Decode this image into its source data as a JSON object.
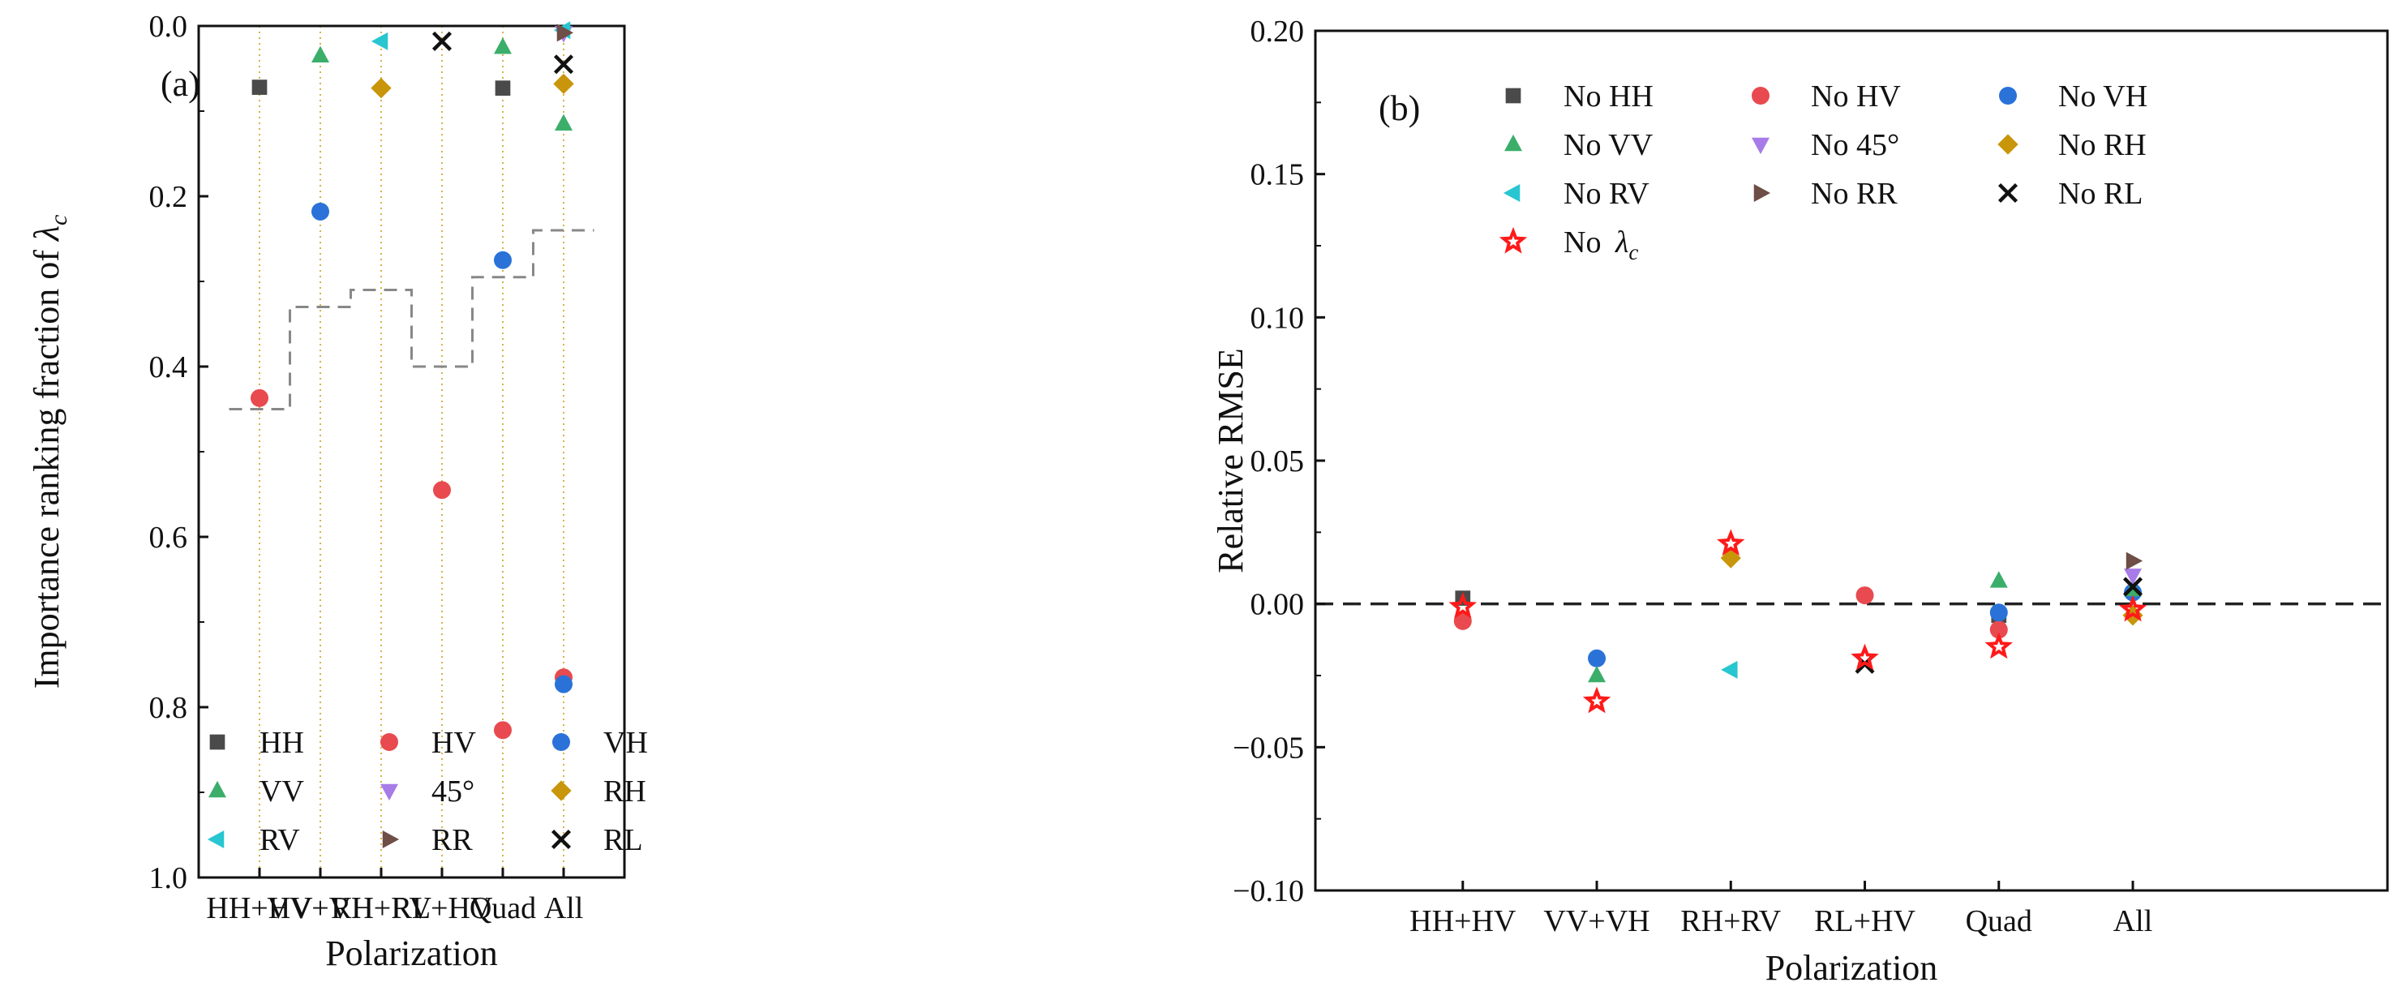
{
  "colors": {
    "HH": "#4a4a4a",
    "HV": "#e84a4f",
    "VH": "#2a72d8",
    "VV": "#3bae6a",
    "45": "#a77be8",
    "RH": "#c9950a",
    "RV": "#27c6d1",
    "RR": "#6e4e46",
    "RL": "#111111",
    "LC": "#ff1a1a",
    "guide": "#888888",
    "dashed_zero": "#222222"
  },
  "chart_data": [
    {
      "type": "scatter",
      "panel_label": "(a)",
      "xlabel": "Polarization",
      "ylabel_prefix": "Importance ranking fraction of ",
      "ylabel_symbol": "λ",
      "ylabel_sub": "c",
      "categories": [
        "HH+HV",
        "VV+VH",
        "RH+RV",
        "RL+HV",
        "Quad",
        "All"
      ],
      "ylim": [
        1.0,
        0.0
      ],
      "yticks": [
        "0.0",
        "0.2",
        "0.4",
        "0.6",
        "0.8",
        "1.0"
      ],
      "ytick_values": [
        0.0,
        0.2,
        0.4,
        0.6,
        0.8,
        1.0
      ],
      "guide_levels": [
        0.45,
        0.33,
        0.31,
        0.4,
        0.295,
        0.24
      ],
      "legend_position": "bottom-left",
      "legend": [
        {
          "key": "HH",
          "label": "HH",
          "marker": "square"
        },
        {
          "key": "HV",
          "label": "HV",
          "marker": "circle"
        },
        {
          "key": "VH",
          "label": "VH",
          "marker": "circle"
        },
        {
          "key": "VV",
          "label": "VV",
          "marker": "triangle-up"
        },
        {
          "key": "45",
          "label": "45°",
          "marker": "triangle-down"
        },
        {
          "key": "RH",
          "label": "RH",
          "marker": "diamond"
        },
        {
          "key": "RV",
          "label": "RV",
          "marker": "triangle-left"
        },
        {
          "key": "RR",
          "label": "RR",
          "marker": "triangle-right"
        },
        {
          "key": "RL",
          "label": "RL",
          "marker": "x"
        }
      ],
      "series": [
        {
          "key": "HH",
          "points": [
            {
              "x": "HH+HV",
              "y": 0.072
            },
            {
              "x": "Quad",
              "y": 0.073
            }
          ]
        },
        {
          "key": "HV",
          "points": [
            {
              "x": "HH+HV",
              "y": 0.437
            },
            {
              "x": "RL+HV",
              "y": 0.545
            },
            {
              "x": "Quad",
              "y": 0.827
            },
            {
              "x": "All",
              "y": 0.765
            }
          ]
        },
        {
          "key": "VH",
          "points": [
            {
              "x": "VV+VH",
              "y": 0.218
            },
            {
              "x": "Quad",
              "y": 0.275
            },
            {
              "x": "All",
              "y": 0.773
            }
          ]
        },
        {
          "key": "VV",
          "points": [
            {
              "x": "VV+VH",
              "y": 0.035
            },
            {
              "x": "Quad",
              "y": 0.025
            },
            {
              "x": "All",
              "y": 0.115
            }
          ]
        },
        {
          "key": "45",
          "points": [
            {
              "x": "All",
              "y": 0.008
            }
          ]
        },
        {
          "key": "RH",
          "points": [
            {
              "x": "RH+RV",
              "y": 0.073
            },
            {
              "x": "All",
              "y": 0.068
            }
          ]
        },
        {
          "key": "RV",
          "points": [
            {
              "x": "RH+RV",
              "y": 0.018
            },
            {
              "x": "All",
              "y": 0.005
            }
          ]
        },
        {
          "key": "RR",
          "points": [
            {
              "x": "All",
              "y": 0.008
            }
          ]
        },
        {
          "key": "RL",
          "points": [
            {
              "x": "RL+HV",
              "y": 0.018
            },
            {
              "x": "All",
              "y": 0.045
            }
          ]
        }
      ]
    },
    {
      "type": "scatter",
      "panel_label": "(b)",
      "xlabel": "Polarization",
      "ylabel": "Relative RMSE",
      "categories": [
        "HH+HV",
        "VV+VH",
        "RH+RV",
        "RL+HV",
        "Quad",
        "All"
      ],
      "ylim": [
        -0.1,
        0.2
      ],
      "yticks": [
        "0.20",
        "0.15",
        "0.10",
        "0.05",
        "0.00",
        "−0.05",
        "−0.10"
      ],
      "ytick_values": [
        0.2,
        0.15,
        0.1,
        0.05,
        0.0,
        -0.05,
        -0.1
      ],
      "zero_line": 0.0,
      "legend_position": "top-left",
      "legend": [
        {
          "key": "HH",
          "label": "No HH",
          "marker": "square"
        },
        {
          "key": "HV",
          "label": "No HV",
          "marker": "circle"
        },
        {
          "key": "VH",
          "label": "No VH",
          "marker": "circle"
        },
        {
          "key": "VV",
          "label": "No VV",
          "marker": "triangle-up"
        },
        {
          "key": "45",
          "label": "No 45°",
          "marker": "triangle-down"
        },
        {
          "key": "RH",
          "label": "No RH",
          "marker": "diamond"
        },
        {
          "key": "RV",
          "label": "No RV",
          "marker": "triangle-left"
        },
        {
          "key": "RR",
          "label": "No RR",
          "marker": "triangle-right"
        },
        {
          "key": "RL",
          "label": "No RL",
          "marker": "x"
        },
        {
          "key": "LC",
          "label": "No ",
          "label_symbol": "λ",
          "label_sub": "c",
          "marker": "star"
        }
      ],
      "series": [
        {
          "key": "HH",
          "points": [
            {
              "x": "HH+HV",
              "y": 0.002
            },
            {
              "x": "Quad",
              "y": -0.004
            }
          ]
        },
        {
          "key": "HV",
          "points": [
            {
              "x": "HH+HV",
              "y": -0.006
            },
            {
              "x": "RL+HV",
              "y": 0.003
            },
            {
              "x": "Quad",
              "y": -0.009
            }
          ]
        },
        {
          "key": "VH",
          "points": [
            {
              "x": "VV+VH",
              "y": -0.019
            },
            {
              "x": "Quad",
              "y": -0.003
            },
            {
              "x": "All",
              "y": 0.004
            }
          ]
        },
        {
          "key": "VV",
          "points": [
            {
              "x": "VV+VH",
              "y": -0.025
            },
            {
              "x": "Quad",
              "y": 0.008
            },
            {
              "x": "All",
              "y": 0.005
            }
          ]
        },
        {
          "key": "45",
          "points": [
            {
              "x": "All",
              "y": 0.01
            }
          ]
        },
        {
          "key": "RH",
          "points": [
            {
              "x": "RH+RV",
              "y": 0.016
            },
            {
              "x": "All",
              "y": -0.004
            }
          ]
        },
        {
          "key": "RV",
          "points": [
            {
              "x": "RH+RV",
              "y": -0.023
            }
          ]
        },
        {
          "key": "RR",
          "points": [
            {
              "x": "All",
              "y": 0.015
            }
          ]
        },
        {
          "key": "RL",
          "points": [
            {
              "x": "RL+HV",
              "y": -0.021
            },
            {
              "x": "All",
              "y": 0.006
            }
          ]
        },
        {
          "key": "LC",
          "points": [
            {
              "x": "HH+HV",
              "y": -0.001
            },
            {
              "x": "VV+VH",
              "y": -0.034
            },
            {
              "x": "RH+RV",
              "y": 0.021
            },
            {
              "x": "RL+HV",
              "y": -0.019
            },
            {
              "x": "Quad",
              "y": -0.015
            },
            {
              "x": "All",
              "y": -0.002
            }
          ]
        }
      ]
    }
  ]
}
